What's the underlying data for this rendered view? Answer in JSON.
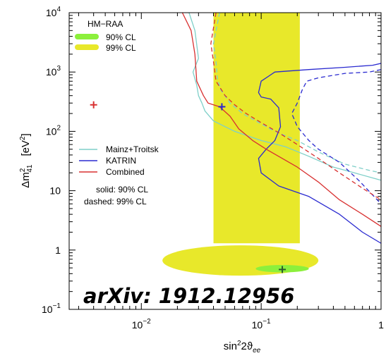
{
  "chart_data": {
    "type": "line",
    "title": "",
    "xlabel": "sin²2ϑee",
    "xlabel_main": "sin",
    "xlabel_sup": "2",
    "xlabel_mid": "2ϑ",
    "xlabel_sub": "ee",
    "ylabel": "Δm²41 [eV²]",
    "ylabel_main": "Δm",
    "ylabel_sup": "2",
    "ylabel_sub": "41",
    "ylabel_unit_main": "[eV",
    "ylabel_unit_sup": "2",
    "ylabel_unit_end": "]",
    "xscale": "log",
    "yscale": "log",
    "xlim": [
      0.0025,
      1.0
    ],
    "ylim": [
      0.1,
      10000
    ],
    "x_ticks": [
      {
        "value": 0.01,
        "base": "10",
        "exp": "−2"
      },
      {
        "value": 0.1,
        "base": "10",
        "exp": "−1"
      },
      {
        "value": 1,
        "base": "1",
        "exp": ""
      }
    ],
    "y_ticks": [
      {
        "value": 0.1,
        "base": "10",
        "exp": "−1"
      },
      {
        "value": 1,
        "base": "1",
        "exp": ""
      },
      {
        "value": 10,
        "base": "10",
        "exp": ""
      },
      {
        "value": 100,
        "base": "10",
        "exp": "2"
      },
      {
        "value": 1000,
        "base": "10",
        "exp": "3"
      },
      {
        "value": 10000,
        "base": "10",
        "exp": "4"
      }
    ],
    "legend_top": {
      "title": "HM−RAA",
      "entries": [
        {
          "label": "90% CL",
          "color": "#8cf03c"
        },
        {
          "label": "99% CL",
          "color": "#e8e82a"
        }
      ]
    },
    "legend_bottom": {
      "entries": [
        {
          "label": "Mainz+Troitsk",
          "color": "#7ecfc8"
        },
        {
          "label": "KATRIN",
          "color": "#2a2ad0"
        },
        {
          "label": "Combined",
          "color": "#d83030"
        }
      ],
      "note_solid": "solid: 90% CL",
      "note_dashed": "dashed: 99% CL"
    },
    "watermark": "arXiv: 1912.12956",
    "colors": {
      "band_99": "#e8e82a",
      "band_90": "#8cf03c",
      "mainz_troitsk": "#7ecfc8",
      "katrin": "#2a2ad0",
      "combined": "#d83030"
    },
    "regions": {
      "raa_99_band": {
        "x_min": 0.04,
        "x_max": 0.21,
        "y_min": 1.3,
        "y_max": 10000
      },
      "raa_99_island": {
        "x_min": 0.015,
        "x_max": 0.3,
        "y_min": 0.37,
        "y_max": 1.2
      },
      "raa_90_island": {
        "x_min": 0.09,
        "x_max": 0.25,
        "y_min": 0.42,
        "y_max": 0.56
      }
    },
    "markers": [
      {
        "name": "red-best-fit",
        "x": 0.004,
        "y": 280,
        "color": "#d83030"
      },
      {
        "name": "blue-best-fit",
        "x": 0.047,
        "y": 260,
        "color": "#2a2ad0"
      },
      {
        "name": "green-best-fit",
        "x": 0.15,
        "y": 0.47,
        "color": "#2d5a2d"
      }
    ],
    "series": [
      {
        "name": "Mainz+Troitsk",
        "cl": "90%",
        "style": "solid",
        "color": "#7ecfc8",
        "points": [
          [
            0.025,
            10000
          ],
          [
            0.028,
            5000
          ],
          [
            0.03,
            1700
          ],
          [
            0.027,
            1000
          ],
          [
            0.029,
            600
          ],
          [
            0.03,
            400
          ],
          [
            0.032,
            300
          ],
          [
            0.034,
            220
          ],
          [
            0.04,
            150
          ],
          [
            0.06,
            100
          ],
          [
            0.1,
            70
          ],
          [
            0.16,
            55
          ],
          [
            0.25,
            38
          ],
          [
            0.4,
            25
          ],
          [
            0.6,
            20
          ],
          [
            1.0,
            15
          ]
        ]
      },
      {
        "name": "Mainz+Troitsk",
        "cl": "99%",
        "style": "dashed",
        "color": "#7ecfc8",
        "points": [
          [
            0.045,
            10000
          ],
          [
            0.04,
            3000
          ],
          [
            0.042,
            1500
          ],
          [
            0.043,
            800
          ],
          [
            0.046,
            500
          ],
          [
            0.055,
            300
          ],
          [
            0.07,
            200
          ],
          [
            0.09,
            150
          ],
          [
            0.13,
            100
          ],
          [
            0.2,
            70
          ],
          [
            0.3,
            45
          ],
          [
            0.5,
            28
          ],
          [
            0.8,
            22
          ],
          [
            1.0,
            20
          ]
        ]
      },
      {
        "name": "KATRIN",
        "cl": "90%",
        "style": "solid",
        "color": "#2a2ad0",
        "points": [
          [
            1.0,
            1400
          ],
          [
            0.85,
            1300
          ],
          [
            0.5,
            1200
          ],
          [
            0.25,
            1100
          ],
          [
            0.13,
            1000
          ],
          [
            0.1,
            700
          ],
          [
            0.095,
            450
          ],
          [
            0.1,
            380
          ],
          [
            0.12,
            350
          ],
          [
            0.14,
            250
          ],
          [
            0.145,
            120
          ],
          [
            0.13,
            70
          ],
          [
            0.11,
            50
          ],
          [
            0.095,
            35
          ],
          [
            0.1,
            20
          ],
          [
            0.14,
            12
          ],
          [
            0.25,
            8
          ],
          [
            0.45,
            4
          ],
          [
            0.7,
            2
          ],
          [
            1.0,
            1.3
          ]
        ]
      },
      {
        "name": "KATRIN",
        "cl": "99%",
        "style": "dashed",
        "color": "#2a2ad0",
        "points": [
          [
            1.0,
            1100
          ],
          [
            0.8,
            1000
          ],
          [
            0.5,
            950
          ],
          [
            0.3,
            800
          ],
          [
            0.24,
            700
          ],
          [
            0.22,
            500
          ],
          [
            0.2,
            300
          ],
          [
            0.18,
            200
          ],
          [
            0.2,
            120
          ],
          [
            0.25,
            70
          ],
          [
            0.3,
            50
          ],
          [
            0.45,
            30
          ],
          [
            0.65,
            15
          ],
          [
            1.0,
            6
          ]
        ]
      },
      {
        "name": "Combined",
        "cl": "90%",
        "style": "solid",
        "color": "#d83030",
        "points": [
          [
            0.022,
            10000
          ],
          [
            0.026,
            5000
          ],
          [
            0.028,
            2000
          ],
          [
            0.029,
            700
          ],
          [
            0.033,
            400
          ],
          [
            0.036,
            300
          ],
          [
            0.045,
            260
          ],
          [
            0.055,
            180
          ],
          [
            0.065,
            110
          ],
          [
            0.085,
            70
          ],
          [
            0.11,
            50
          ],
          [
            0.15,
            35
          ],
          [
            0.2,
            25
          ],
          [
            0.3,
            14
          ],
          [
            0.45,
            7
          ],
          [
            0.7,
            4
          ],
          [
            1.0,
            2.5
          ]
        ]
      },
      {
        "name": "Combined",
        "cl": "99%",
        "style": "dashed",
        "color": "#d83030",
        "points": [
          [
            0.042,
            10000
          ],
          [
            0.038,
            3000
          ],
          [
            0.04,
            1500
          ],
          [
            0.042,
            700
          ],
          [
            0.05,
            400
          ],
          [
            0.06,
            280
          ],
          [
            0.075,
            200
          ],
          [
            0.1,
            140
          ],
          [
            0.14,
            95
          ],
          [
            0.2,
            60
          ],
          [
            0.3,
            35
          ],
          [
            0.45,
            20
          ],
          [
            0.7,
            11
          ],
          [
            1.0,
            7
          ]
        ]
      }
    ]
  }
}
